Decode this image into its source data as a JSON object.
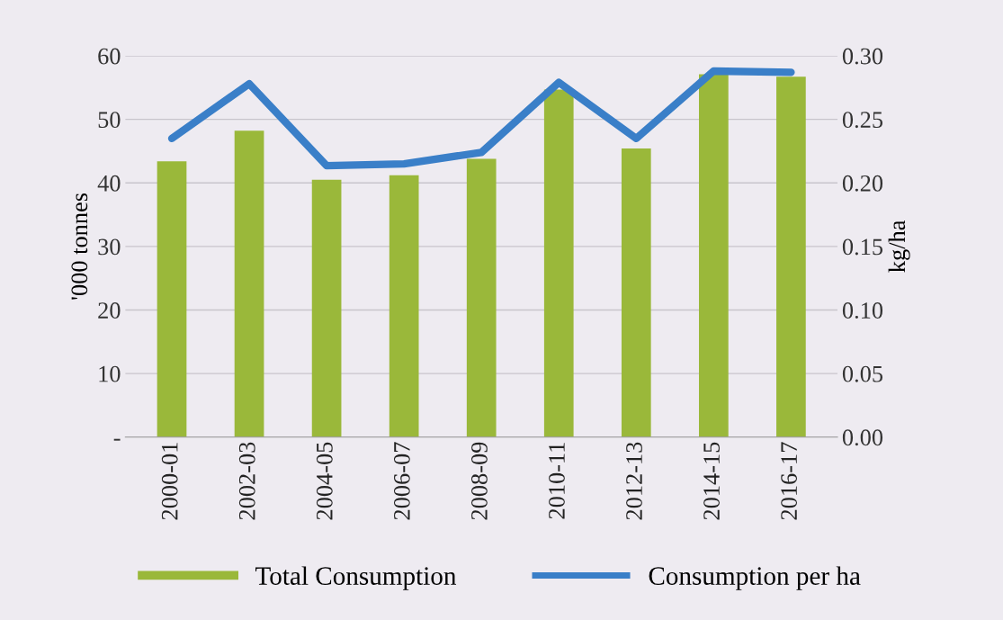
{
  "chart_data": {
    "type": "bar",
    "categories": [
      "2000-01",
      "2002-03",
      "2004-05",
      "2006-07",
      "2008-09",
      "2010-11",
      "2012-13",
      "2014-15",
      "2016-17"
    ],
    "ylabel": "'000 tonnes",
    "y2label": "kg/ha",
    "ylim": [
      0,
      60
    ],
    "yticks": [
      {
        "value": 0,
        "label": "-"
      },
      10,
      20,
      30,
      40,
      50,
      60
    ],
    "y2lim": [
      0,
      0.3
    ],
    "y2ticks": [
      {
        "value": 0,
        "label": "0.00"
      },
      {
        "value": 0.05,
        "label": "0.05"
      },
      {
        "value": 0.1,
        "label": "0.10"
      },
      {
        "value": 0.15,
        "label": "0.15"
      },
      {
        "value": 0.2,
        "label": "0.20"
      },
      {
        "value": 0.25,
        "label": "0.25"
      },
      {
        "value": 0.3,
        "label": "0.30"
      }
    ],
    "grid": "y",
    "legend": "bottom",
    "series": [
      {
        "name": "Total Consumption",
        "color": "#9ab83a",
        "values": [
          43.4,
          48.2,
          40.5,
          41.2,
          43.8,
          54.7,
          45.4,
          57.1,
          56.7
        ]
      },
      {
        "name": "Consumption per ha",
        "type": "line",
        "axis": "y2",
        "color": "#3a7fc8",
        "values": [
          0.235,
          0.278,
          0.2135,
          0.215,
          0.224,
          0.279,
          0.235,
          0.288,
          0.287
        ]
      }
    ]
  }
}
